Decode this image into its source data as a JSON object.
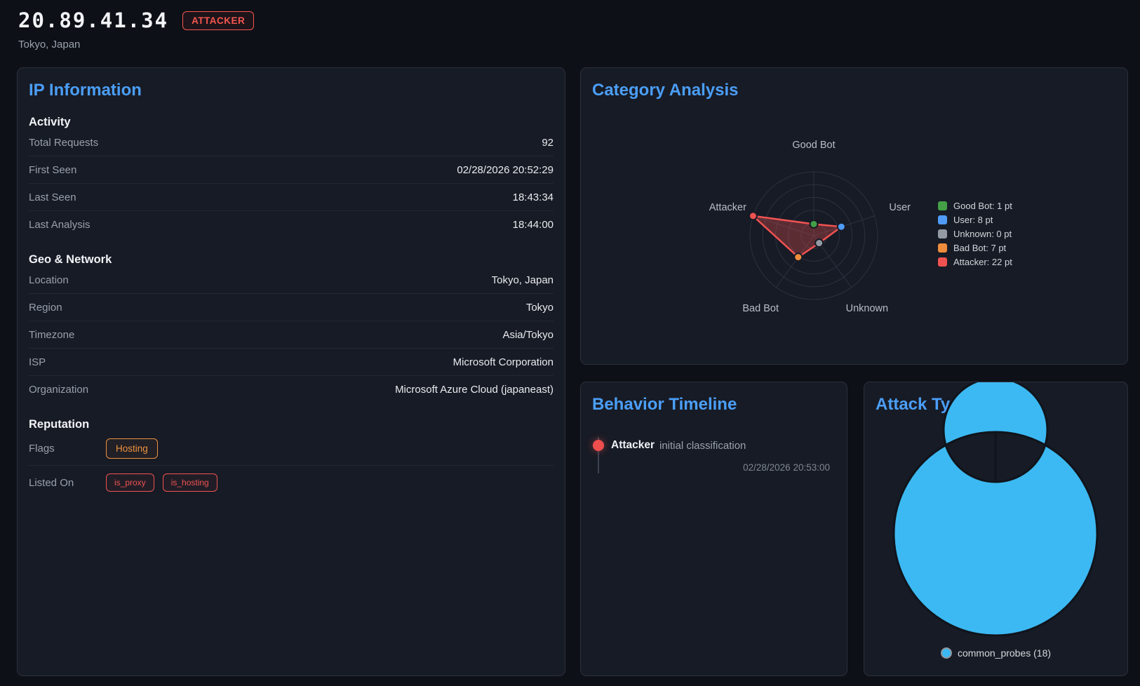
{
  "header": {
    "ip": "20.89.41.34",
    "badge": "ATTACKER",
    "location": "Tokyo, Japan"
  },
  "ip_info": {
    "title": "IP Information",
    "activity": {
      "title": "Activity",
      "rows": [
        {
          "label": "Total Requests",
          "value": "92"
        },
        {
          "label": "First Seen",
          "value": "02/28/2026 20:52:29"
        },
        {
          "label": "Last Seen",
          "value": "18:43:34"
        },
        {
          "label": "Last Analysis",
          "value": "18:44:00"
        }
      ]
    },
    "geo": {
      "title": "Geo & Network",
      "rows": [
        {
          "label": "Location",
          "value": "Tokyo, Japan"
        },
        {
          "label": "Region",
          "value": "Tokyo"
        },
        {
          "label": "Timezone",
          "value": "Asia/Tokyo"
        },
        {
          "label": "ISP",
          "value": "Microsoft Corporation"
        },
        {
          "label": "Organization",
          "value": "Microsoft Azure Cloud (japaneast)"
        }
      ]
    },
    "reputation": {
      "title": "Reputation",
      "flags_label": "Flags",
      "flags": [
        {
          "label": "Hosting"
        }
      ],
      "listed_label": "Listed On",
      "listed_on": [
        {
          "label": "is_proxy"
        },
        {
          "label": "is_hosting"
        }
      ]
    }
  },
  "category_panel": {
    "title": "Category Analysis"
  },
  "behavior_panel": {
    "title": "Behavior Timeline",
    "events": [
      {
        "category": "Attacker",
        "description": "initial classification",
        "timestamp": "02/28/2026 20:53:00",
        "color": "#ef4e4e"
      }
    ]
  },
  "attack_panel": {
    "title": "Attack Types"
  },
  "colors": {
    "accent_blue": "#4b9ef7",
    "danger_red": "#f4564f",
    "warning_orange": "#ef913f",
    "donut_blue": "#3cb9f2"
  },
  "chart_data": [
    {
      "id": "category_radar",
      "type": "radar",
      "title": "Category Analysis",
      "categories": [
        "Good Bot",
        "User",
        "Unknown",
        "Bad Bot",
        "Attacker"
      ],
      "values": [
        1,
        8,
        0,
        7,
        22
      ],
      "max": 22,
      "rings": 5,
      "grid": true,
      "line_color": "#f05252",
      "fill_color": "rgba(240,82,82,0.32)",
      "point_colors": [
        "#43a047",
        "#4f9bf5",
        "#939aa3",
        "#ef8d3c",
        "#f05252"
      ],
      "legend_position": "right",
      "legend": [
        {
          "label": "Good Bot: 1 pt",
          "color": "#43a047"
        },
        {
          "label": "User: 8 pt",
          "color": "#4f9bf5"
        },
        {
          "label": "Unknown: 0 pt",
          "color": "#939aa3"
        },
        {
          "label": "Bad Bot: 7 pt",
          "color": "#ef8d3c"
        },
        {
          "label": "Attacker: 22 pt",
          "color": "#f05252"
        }
      ]
    },
    {
      "id": "attack_donut",
      "type": "pie",
      "title": "Attack Types",
      "categories": [
        "common_probes"
      ],
      "values": [
        18
      ],
      "colors": [
        "#3cb9f2"
      ],
      "legend_position": "bottom",
      "legend": [
        {
          "label": "common_probes (18)",
          "color": "#3cb9f2"
        }
      ]
    }
  ]
}
